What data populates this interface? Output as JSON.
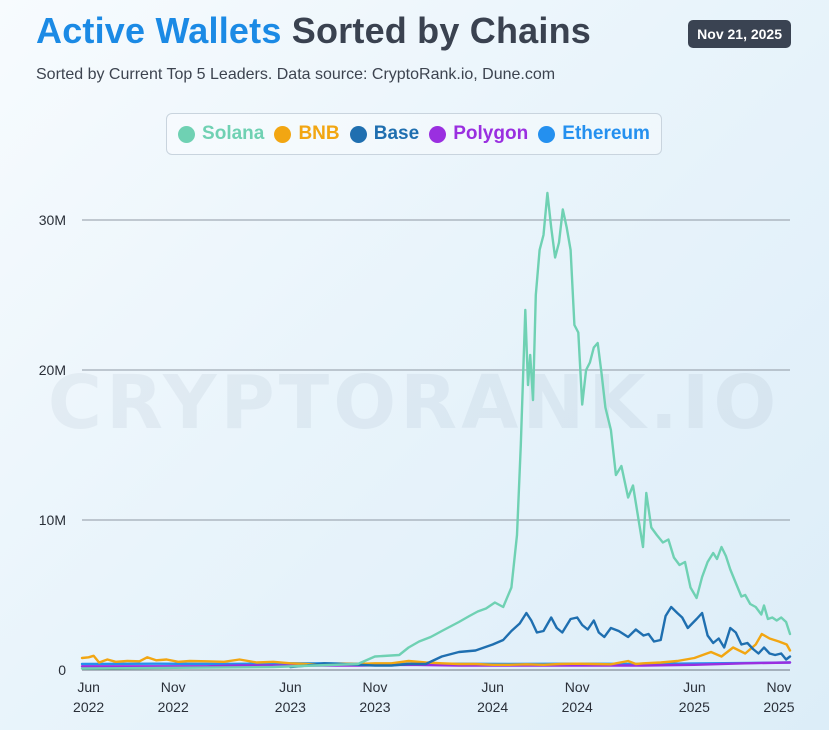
{
  "header": {
    "title_accent": "Active Wallets",
    "title_main": "Sorted by Chains",
    "date": "Nov 21, 2025",
    "subtitle": "Sorted by Current Top 5 Leaders. Data source: CryptoRank.io, Dune.com",
    "watermark": "CRYPTORANK.IO"
  },
  "colors": {
    "Solana": "#6fd1b3",
    "BNB": "#f2a612",
    "Base": "#1f6fb0",
    "Polygon": "#9a2fe0",
    "Ethereum": "#2490ef"
  },
  "chart_data": {
    "type": "line",
    "legend_position": "top-center",
    "grid": true,
    "ylim": [
      0,
      32000000
    ],
    "xlim": [
      "2022-05-20",
      "2025-11-21"
    ],
    "y_ticks": [
      {
        "value": 0,
        "label": "0"
      },
      {
        "value": 10000000,
        "label": "10M"
      },
      {
        "value": 20000000,
        "label": "20M"
      },
      {
        "value": 30000000,
        "label": "30M"
      }
    ],
    "x_ticks": [
      {
        "date": "2022-06-01",
        "line1": "Jun",
        "line2": "2022"
      },
      {
        "date": "2022-11-01",
        "line1": "Nov",
        "line2": "2022"
      },
      {
        "date": "2023-06-01",
        "line1": "Jun",
        "line2": "2023"
      },
      {
        "date": "2023-11-01",
        "line1": "Nov",
        "line2": "2023"
      },
      {
        "date": "2024-06-01",
        "line1": "Jun",
        "line2": "2024"
      },
      {
        "date": "2024-11-01",
        "line1": "Nov",
        "line2": "2024"
      },
      {
        "date": "2025-06-01",
        "line1": "Jun",
        "line2": "2025"
      },
      {
        "date": "2025-11-01",
        "line1": "Nov",
        "line2": "2025"
      }
    ],
    "series": [
      {
        "name": "Solana",
        "points": [
          [
            "2022-05-20",
            100000
          ],
          [
            "2023-05-01",
            200000
          ],
          [
            "2023-10-01",
            400000
          ],
          [
            "2023-11-01",
            900000
          ],
          [
            "2023-12-15",
            1000000
          ],
          [
            "2024-01-01",
            1500000
          ],
          [
            "2024-01-20",
            1900000
          ],
          [
            "2024-02-10",
            2200000
          ],
          [
            "2024-03-01",
            2600000
          ],
          [
            "2024-04-01",
            3200000
          ],
          [
            "2024-04-20",
            3600000
          ],
          [
            "2024-05-05",
            3900000
          ],
          [
            "2024-05-20",
            4100000
          ],
          [
            "2024-06-05",
            4500000
          ],
          [
            "2024-06-20",
            4200000
          ],
          [
            "2024-07-05",
            5500000
          ],
          [
            "2024-07-15",
            9000000
          ],
          [
            "2024-07-22",
            15000000
          ],
          [
            "2024-07-30",
            24000000
          ],
          [
            "2024-08-04",
            19000000
          ],
          [
            "2024-08-08",
            21000000
          ],
          [
            "2024-08-13",
            18000000
          ],
          [
            "2024-08-18",
            25000000
          ],
          [
            "2024-08-25",
            28000000
          ],
          [
            "2024-09-01",
            29000000
          ],
          [
            "2024-09-08",
            31800000
          ],
          [
            "2024-09-15",
            29500000
          ],
          [
            "2024-09-22",
            27500000
          ],
          [
            "2024-09-29",
            28500000
          ],
          [
            "2024-10-06",
            30700000
          ],
          [
            "2024-10-13",
            29500000
          ],
          [
            "2024-10-20",
            28000000
          ],
          [
            "2024-10-27",
            23000000
          ],
          [
            "2024-11-03",
            22500000
          ],
          [
            "2024-11-10",
            17700000
          ],
          [
            "2024-11-17",
            20000000
          ],
          [
            "2024-11-24",
            20500000
          ],
          [
            "2024-12-01",
            21500000
          ],
          [
            "2024-12-08",
            21800000
          ],
          [
            "2024-12-15",
            19800000
          ],
          [
            "2024-12-22",
            17500000
          ],
          [
            "2025-01-01",
            16000000
          ],
          [
            "2025-01-10",
            13000000
          ],
          [
            "2025-01-20",
            13600000
          ],
          [
            "2025-02-01",
            11500000
          ],
          [
            "2025-02-10",
            12300000
          ],
          [
            "2025-02-20",
            10000000
          ],
          [
            "2025-02-28",
            8200000
          ],
          [
            "2025-03-06",
            11800000
          ],
          [
            "2025-03-15",
            9500000
          ],
          [
            "2025-03-25",
            9000000
          ],
          [
            "2025-04-05",
            8500000
          ],
          [
            "2025-04-15",
            8700000
          ],
          [
            "2025-04-25",
            7500000
          ],
          [
            "2025-05-05",
            7000000
          ],
          [
            "2025-05-15",
            7200000
          ],
          [
            "2025-05-25",
            5500000
          ],
          [
            "2025-06-05",
            4800000
          ],
          [
            "2025-06-15",
            6200000
          ],
          [
            "2025-06-25",
            7200000
          ],
          [
            "2025-07-05",
            7800000
          ],
          [
            "2025-07-12",
            7400000
          ],
          [
            "2025-07-20",
            8200000
          ],
          [
            "2025-07-28",
            7600000
          ],
          [
            "2025-08-05",
            6700000
          ],
          [
            "2025-08-15",
            5800000
          ],
          [
            "2025-08-25",
            4900000
          ],
          [
            "2025-09-01",
            5000000
          ],
          [
            "2025-09-10",
            4400000
          ],
          [
            "2025-09-20",
            4200000
          ],
          [
            "2025-09-30",
            3700000
          ],
          [
            "2025-10-05",
            4300000
          ],
          [
            "2025-10-12",
            3400000
          ],
          [
            "2025-10-20",
            3500000
          ],
          [
            "2025-10-28",
            3300000
          ],
          [
            "2025-11-05",
            3500000
          ],
          [
            "2025-11-14",
            3200000
          ],
          [
            "2025-11-21",
            2400000
          ]
        ]
      },
      {
        "name": "BNB",
        "points": [
          [
            "2022-05-20",
            800000
          ],
          [
            "2022-06-01",
            850000
          ],
          [
            "2022-06-10",
            950000
          ],
          [
            "2022-06-20",
            500000
          ],
          [
            "2022-07-05",
            700000
          ],
          [
            "2022-07-20",
            550000
          ],
          [
            "2022-08-10",
            600000
          ],
          [
            "2022-09-01",
            580000
          ],
          [
            "2022-09-15",
            850000
          ],
          [
            "2022-10-01",
            650000
          ],
          [
            "2022-10-20",
            700000
          ],
          [
            "2022-11-10",
            550000
          ],
          [
            "2022-12-01",
            600000
          ],
          [
            "2023-01-01",
            580000
          ],
          [
            "2023-02-01",
            550000
          ],
          [
            "2023-03-01",
            700000
          ],
          [
            "2023-04-01",
            500000
          ],
          [
            "2023-05-01",
            550000
          ],
          [
            "2023-06-01",
            450000
          ],
          [
            "2023-07-01",
            400000
          ],
          [
            "2023-08-01",
            380000
          ],
          [
            "2023-09-01",
            420000
          ],
          [
            "2023-10-01",
            400000
          ],
          [
            "2023-11-01",
            450000
          ],
          [
            "2023-12-01",
            450000
          ],
          [
            "2024-01-01",
            600000
          ],
          [
            "2024-02-01",
            500000
          ],
          [
            "2024-03-01",
            450000
          ],
          [
            "2024-04-01",
            400000
          ],
          [
            "2024-05-01",
            400000
          ],
          [
            "2024-06-01",
            350000
          ],
          [
            "2024-07-01",
            350000
          ],
          [
            "2024-08-01",
            380000
          ],
          [
            "2024-09-01",
            350000
          ],
          [
            "2024-10-01",
            400000
          ],
          [
            "2024-11-01",
            420000
          ],
          [
            "2024-12-01",
            400000
          ],
          [
            "2025-01-01",
            380000
          ],
          [
            "2025-02-01",
            600000
          ],
          [
            "2025-02-15",
            400000
          ],
          [
            "2025-03-01",
            450000
          ],
          [
            "2025-04-01",
            500000
          ],
          [
            "2025-05-01",
            600000
          ],
          [
            "2025-06-01",
            800000
          ],
          [
            "2025-07-01",
            1200000
          ],
          [
            "2025-07-20",
            900000
          ],
          [
            "2025-08-10",
            1500000
          ],
          [
            "2025-09-01",
            1100000
          ],
          [
            "2025-09-20",
            1700000
          ],
          [
            "2025-10-01",
            2400000
          ],
          [
            "2025-10-15",
            2100000
          ],
          [
            "2025-11-01",
            1900000
          ],
          [
            "2025-11-15",
            1700000
          ],
          [
            "2025-11-21",
            1300000
          ]
        ]
      },
      {
        "name": "Base",
        "points": [
          [
            "2023-06-01",
            200000
          ],
          [
            "2023-07-01",
            300000
          ],
          [
            "2023-08-01",
            450000
          ],
          [
            "2023-09-01",
            400000
          ],
          [
            "2023-10-01",
            350000
          ],
          [
            "2023-11-01",
            300000
          ],
          [
            "2023-12-01",
            300000
          ],
          [
            "2024-01-01",
            400000
          ],
          [
            "2024-02-01",
            400000
          ],
          [
            "2024-03-01",
            900000
          ],
          [
            "2024-04-01",
            1200000
          ],
          [
            "2024-05-01",
            1300000
          ],
          [
            "2024-06-01",
            1700000
          ],
          [
            "2024-06-20",
            2000000
          ],
          [
            "2024-07-05",
            2600000
          ],
          [
            "2024-07-20",
            3100000
          ],
          [
            "2024-08-01",
            3800000
          ],
          [
            "2024-08-10",
            3300000
          ],
          [
            "2024-08-20",
            2500000
          ],
          [
            "2024-09-01",
            2600000
          ],
          [
            "2024-09-15",
            3500000
          ],
          [
            "2024-09-25",
            2800000
          ],
          [
            "2024-10-05",
            2500000
          ],
          [
            "2024-10-20",
            3400000
          ],
          [
            "2024-11-01",
            3500000
          ],
          [
            "2024-11-10",
            3000000
          ],
          [
            "2024-11-20",
            2700000
          ],
          [
            "2024-12-01",
            3300000
          ],
          [
            "2024-12-10",
            2500000
          ],
          [
            "2024-12-20",
            2200000
          ],
          [
            "2025-01-01",
            2800000
          ],
          [
            "2025-01-15",
            2600000
          ],
          [
            "2025-02-01",
            2200000
          ],
          [
            "2025-02-15",
            2700000
          ],
          [
            "2025-03-01",
            2300000
          ],
          [
            "2025-03-10",
            2400000
          ],
          [
            "2025-03-20",
            1900000
          ],
          [
            "2025-04-01",
            2000000
          ],
          [
            "2025-04-10",
            3600000
          ],
          [
            "2025-04-20",
            4200000
          ],
          [
            "2025-05-01",
            3800000
          ],
          [
            "2025-05-10",
            3500000
          ],
          [
            "2025-05-20",
            2800000
          ],
          [
            "2025-06-05",
            3400000
          ],
          [
            "2025-06-15",
            3800000
          ],
          [
            "2025-06-25",
            2300000
          ],
          [
            "2025-07-05",
            1800000
          ],
          [
            "2025-07-15",
            2100000
          ],
          [
            "2025-07-25",
            1500000
          ],
          [
            "2025-08-05",
            2800000
          ],
          [
            "2025-08-15",
            2500000
          ],
          [
            "2025-08-25",
            1700000
          ],
          [
            "2025-09-05",
            1800000
          ],
          [
            "2025-09-15",
            1400000
          ],
          [
            "2025-09-25",
            1100000
          ],
          [
            "2025-10-05",
            1500000
          ],
          [
            "2025-10-15",
            1100000
          ],
          [
            "2025-10-25",
            1000000
          ],
          [
            "2025-11-05",
            1100000
          ],
          [
            "2025-11-14",
            700000
          ],
          [
            "2025-11-21",
            900000
          ]
        ]
      },
      {
        "name": "Polygon",
        "points": [
          [
            "2022-05-20",
            250000
          ],
          [
            "2022-09-01",
            250000
          ],
          [
            "2023-01-01",
            250000
          ],
          [
            "2023-03-01",
            300000
          ],
          [
            "2023-06-01",
            300000
          ],
          [
            "2023-10-01",
            300000
          ],
          [
            "2024-01-01",
            350000
          ],
          [
            "2024-04-01",
            300000
          ],
          [
            "2024-08-01",
            300000
          ],
          [
            "2024-12-01",
            300000
          ],
          [
            "2025-03-01",
            300000
          ],
          [
            "2025-06-01",
            350000
          ],
          [
            "2025-09-01",
            450000
          ],
          [
            "2025-11-21",
            500000
          ]
        ]
      },
      {
        "name": "Ethereum",
        "points": [
          [
            "2022-05-20",
            400000
          ],
          [
            "2022-10-01",
            420000
          ],
          [
            "2023-02-01",
            400000
          ],
          [
            "2023-06-01",
            450000
          ],
          [
            "2023-08-01",
            450000
          ],
          [
            "2023-11-01",
            400000
          ],
          [
            "2024-03-01",
            420000
          ],
          [
            "2024-07-01",
            400000
          ],
          [
            "2024-11-01",
            420000
          ],
          [
            "2025-03-01",
            400000
          ],
          [
            "2025-07-01",
            450000
          ],
          [
            "2025-11-21",
            500000
          ]
        ]
      }
    ]
  }
}
